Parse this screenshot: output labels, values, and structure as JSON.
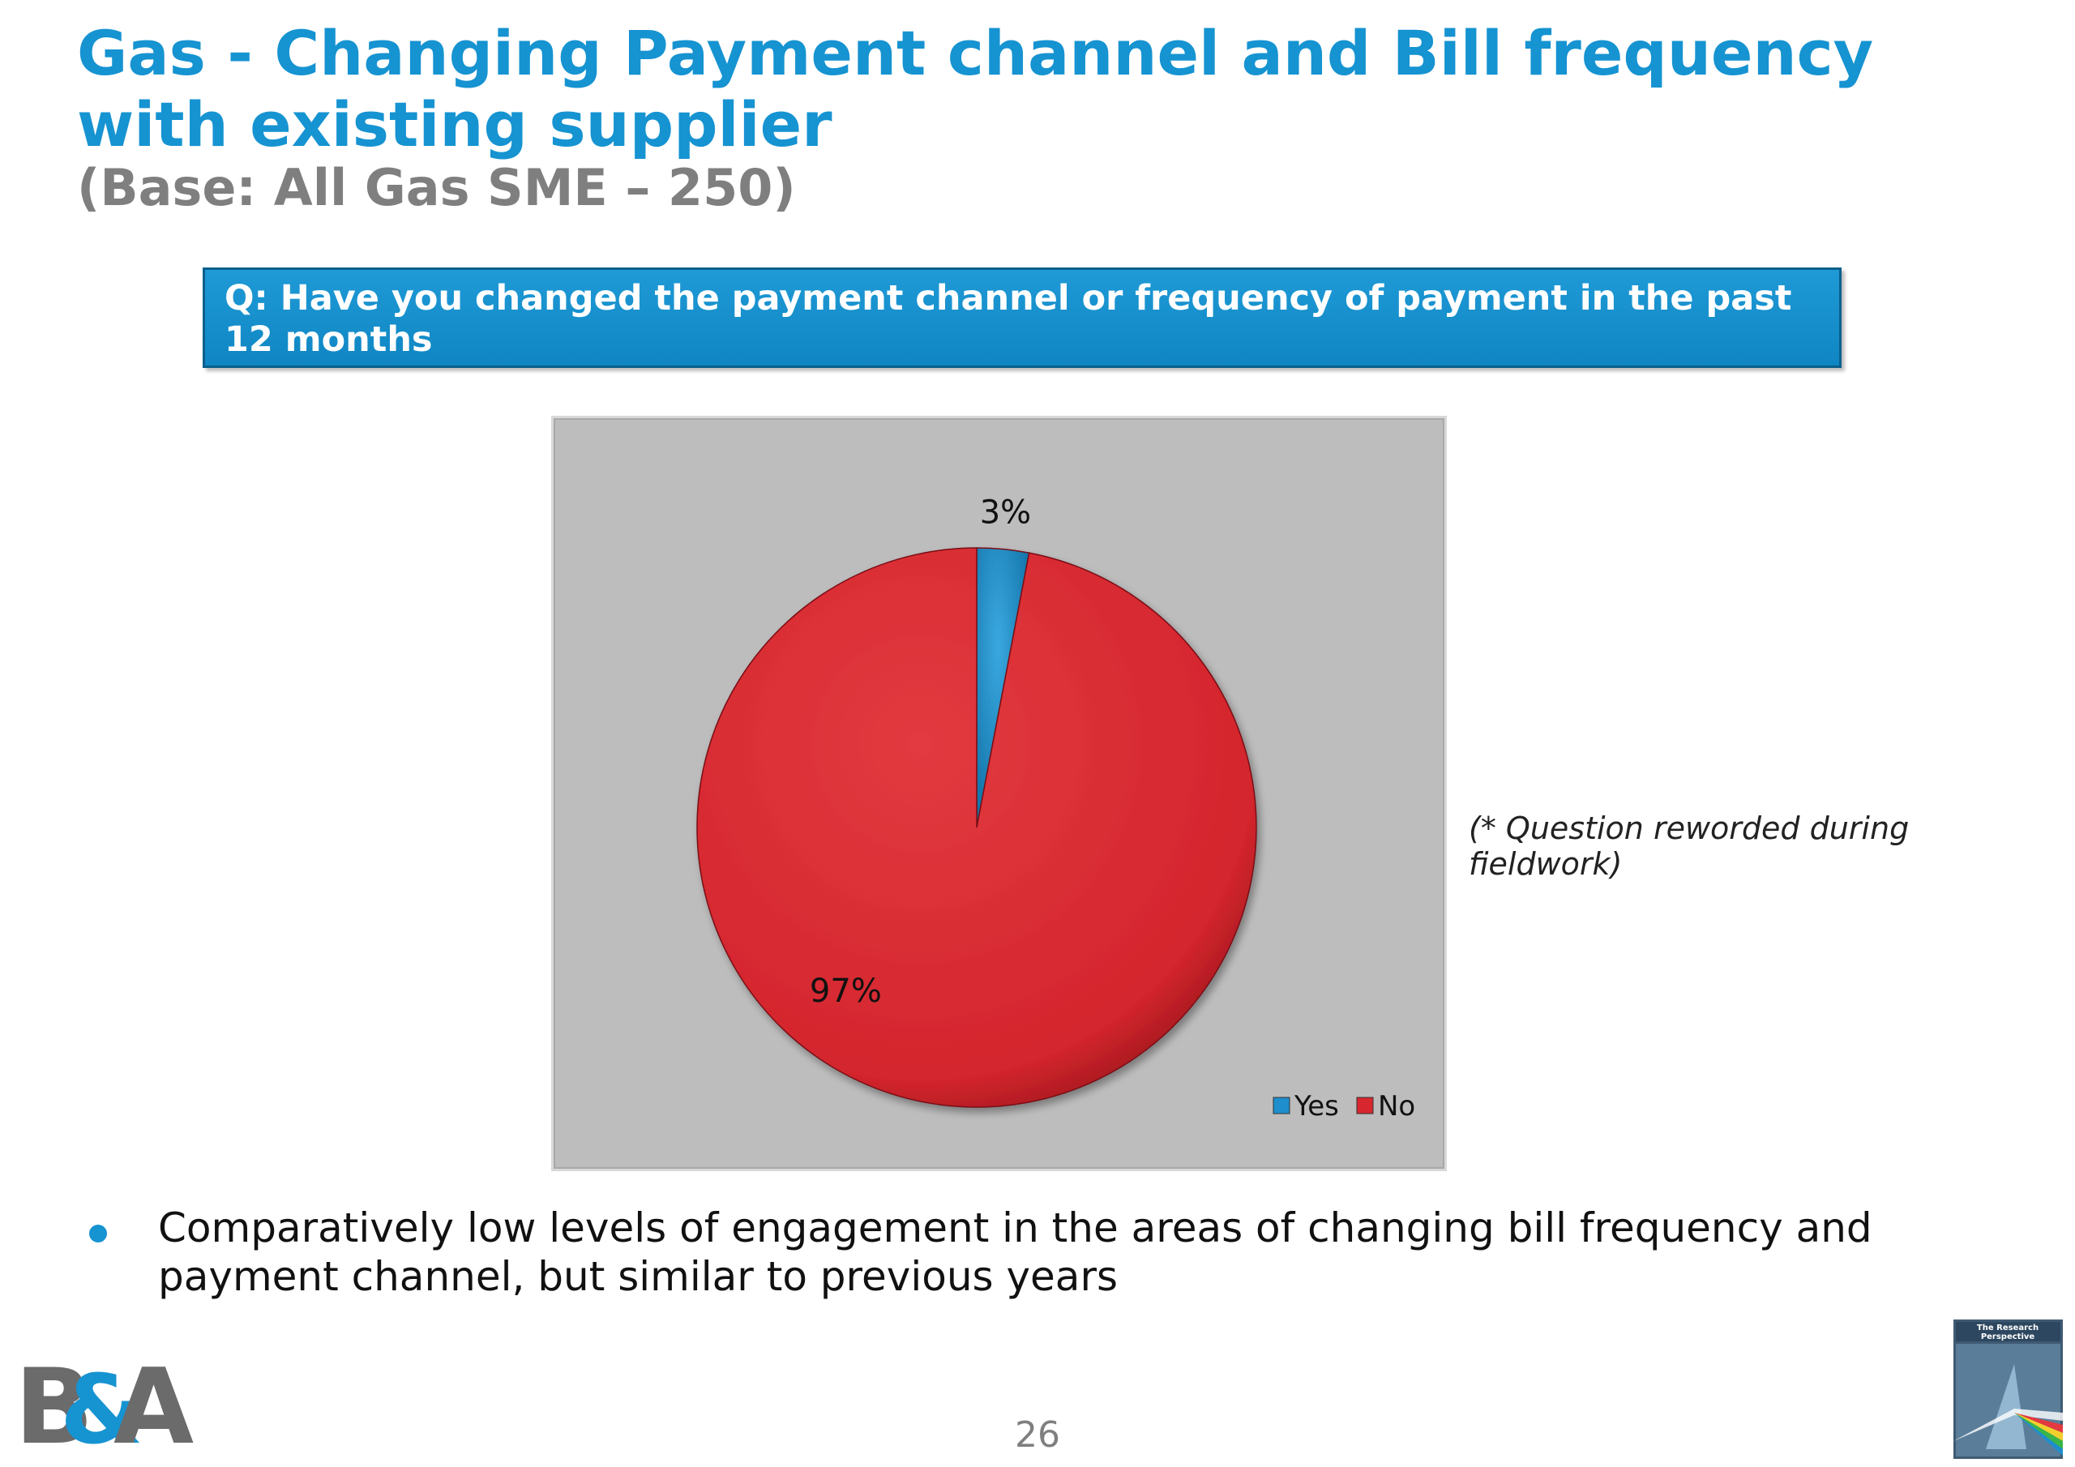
{
  "slide": {
    "title": "Gas - Changing Payment channel and Bill frequency with existing supplier",
    "subtitle": "(Base: All Gas SME – 250)",
    "question": "Q:  Have you changed the payment channel or frequency of payment in the past 12 months",
    "footnote": "(* Question reworded during fieldwork)",
    "bullets": [
      "Comparatively low levels of engagement in the areas of changing bill frequency and payment channel, but similar to previous years"
    ],
    "page_number": "26",
    "logos": {
      "left": {
        "icon": "ba-logo",
        "text": "B&A"
      },
      "right": {
        "icon": "research-perspective-logo",
        "text": "The Research Perspective"
      }
    }
  },
  "colors": {
    "title": "#1693d1",
    "subtitle": "#7f7f7f",
    "question_box": "#1693d1",
    "panel": "#bdbdbd",
    "yes": "#1e8fcc",
    "no": "#d8262e"
  },
  "chart_data": {
    "type": "pie",
    "title": "",
    "categories": [
      "Yes",
      "No"
    ],
    "values": [
      3,
      97
    ],
    "labels": [
      "3%",
      "97%"
    ],
    "unit": "%",
    "legend": {
      "position": "bottom-right",
      "entries": [
        "Yes",
        "No"
      ]
    },
    "colors": [
      "#1e8fcc",
      "#d8262e"
    ]
  }
}
